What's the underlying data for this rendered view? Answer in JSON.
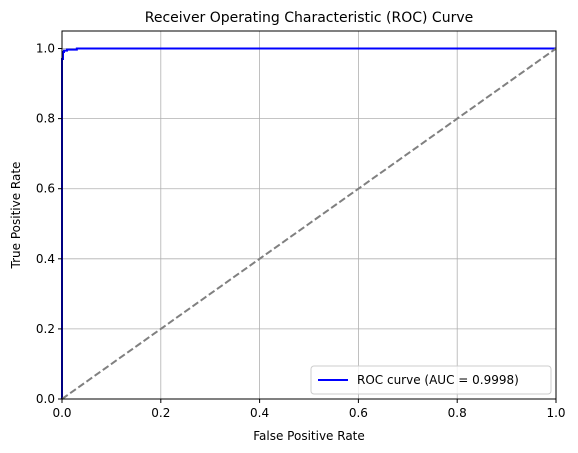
{
  "chart_data": {
    "type": "line",
    "title": "Receiver Operating Characteristic (ROC) Curve",
    "xlabel": "False Positive Rate",
    "ylabel": "True Positive Rate",
    "xlim": [
      0.0,
      1.0
    ],
    "ylim": [
      0.0,
      1.05
    ],
    "xticks": [
      0.0,
      0.2,
      0.4,
      0.6,
      0.8,
      1.0
    ],
    "yticks": [
      0.0,
      0.2,
      0.4,
      0.6,
      0.8,
      1.0
    ],
    "xtick_labels": [
      "0.0",
      "0.2",
      "0.4",
      "0.6",
      "0.8",
      "1.0"
    ],
    "ytick_labels": [
      "0.0",
      "0.2",
      "0.4",
      "0.6",
      "0.8",
      "1.0"
    ],
    "grid": true,
    "legend_position": "bottom-right",
    "series": [
      {
        "name": "ROC curve (AUC = 0.9998)",
        "color": "#0000ff",
        "style": "solid",
        "x": [
          0.0,
          0.0,
          0.0,
          0.002,
          0.002,
          0.004,
          0.004,
          0.01,
          0.01,
          0.03,
          0.03,
          1.0
        ],
        "y": [
          0.0,
          0.93,
          0.97,
          0.97,
          0.99,
          0.99,
          0.994,
          0.994,
          0.997,
          0.997,
          1.0,
          1.0
        ]
      },
      {
        "name": "",
        "color": "#808080",
        "style": "dashed",
        "x": [
          0.0,
          1.0
        ],
        "y": [
          0.0,
          1.0
        ]
      }
    ]
  }
}
